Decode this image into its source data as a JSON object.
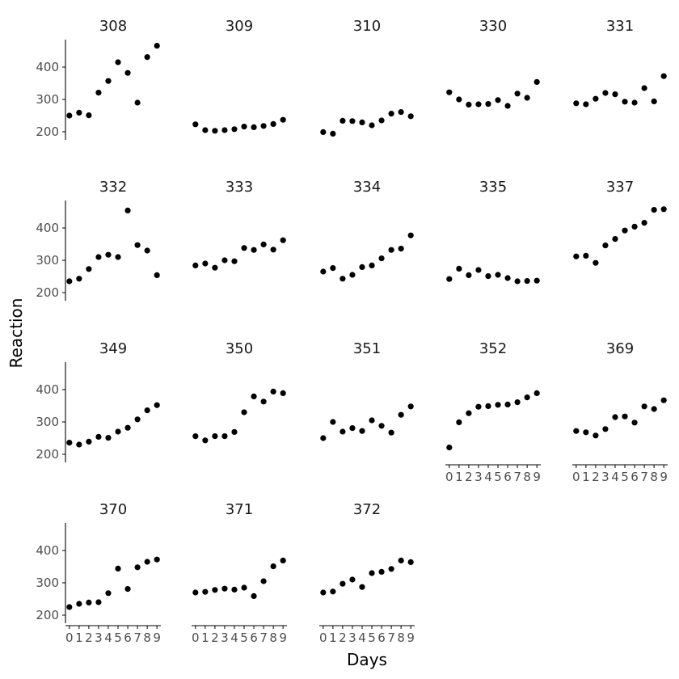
{
  "chart_data": {
    "type": "scatter",
    "xlabel": "Days",
    "ylabel": "Reaction",
    "x_ticks": [
      "0",
      "1",
      "2",
      "3",
      "4",
      "5",
      "6",
      "7",
      "8",
      "9"
    ],
    "y_ticks": [
      "200",
      "300",
      "400"
    ],
    "ylim": [
      180,
      480
    ],
    "xlim": [
      -0.4,
      9.4
    ],
    "grid": false,
    "legend": "none",
    "point_color": "#000000",
    "x": [
      0,
      1,
      2,
      3,
      4,
      5,
      6,
      7,
      8,
      9
    ],
    "panels": [
      {
        "name": "308",
        "values": [
          250,
          259,
          251,
          321,
          357,
          415,
          382,
          290,
          431,
          466
        ]
      },
      {
        "name": "309",
        "values": [
          223,
          205,
          203,
          205,
          208,
          216,
          214,
          218,
          224,
          237
        ]
      },
      {
        "name": "310",
        "values": [
          199,
          194,
          234,
          233,
          229,
          220,
          235,
          256,
          261,
          248
        ]
      },
      {
        "name": "330",
        "values": [
          322,
          300,
          284,
          285,
          286,
          298,
          280,
          318,
          305,
          354
        ]
      },
      {
        "name": "331",
        "values": [
          288,
          285,
          302,
          320,
          316,
          293,
          290,
          335,
          294,
          372
        ]
      },
      {
        "name": "332",
        "values": [
          235,
          243,
          273,
          310,
          317,
          310,
          454,
          347,
          330,
          254
        ]
      },
      {
        "name": "333",
        "values": [
          284,
          290,
          277,
          300,
          297,
          338,
          332,
          349,
          333,
          362
        ]
      },
      {
        "name": "334",
        "values": [
          265,
          276,
          243,
          255,
          279,
          284,
          306,
          332,
          336,
          377
        ]
      },
      {
        "name": "335",
        "values": [
          242,
          274,
          254,
          270,
          251,
          255,
          245,
          235,
          236,
          237
        ]
      },
      {
        "name": "337",
        "values": [
          312,
          314,
          292,
          346,
          366,
          392,
          404,
          416,
          456,
          458
        ]
      },
      {
        "name": "349",
        "values": [
          236,
          230,
          239,
          254,
          251,
          270,
          282,
          308,
          336,
          352
        ]
      },
      {
        "name": "350",
        "values": [
          256,
          243,
          256,
          256,
          269,
          330,
          379,
          363,
          394,
          389
        ]
      },
      {
        "name": "351",
        "values": [
          250,
          300,
          270,
          281,
          272,
          305,
          288,
          267,
          322,
          348
        ]
      },
      {
        "name": "352",
        "values": [
          221,
          299,
          327,
          347,
          349,
          353,
          354,
          361,
          376,
          389
        ]
      },
      {
        "name": "369",
        "values": [
          272,
          268,
          258,
          278,
          315,
          317,
          298,
          348,
          340,
          367
        ]
      },
      {
        "name": "370",
        "values": [
          225,
          235,
          239,
          240,
          268,
          344,
          281,
          348,
          365,
          372
        ]
      },
      {
        "name": "371",
        "values": [
          270,
          272,
          278,
          282,
          279,
          285,
          259,
          305,
          351,
          369
        ]
      },
      {
        "name": "372",
        "values": [
          270,
          273,
          297,
          310,
          287,
          330,
          334,
          343,
          369,
          364
        ]
      }
    ],
    "columns": 5,
    "x_axis_shown_on": [
      "352",
      "369",
      "370",
      "371",
      "372"
    ]
  }
}
